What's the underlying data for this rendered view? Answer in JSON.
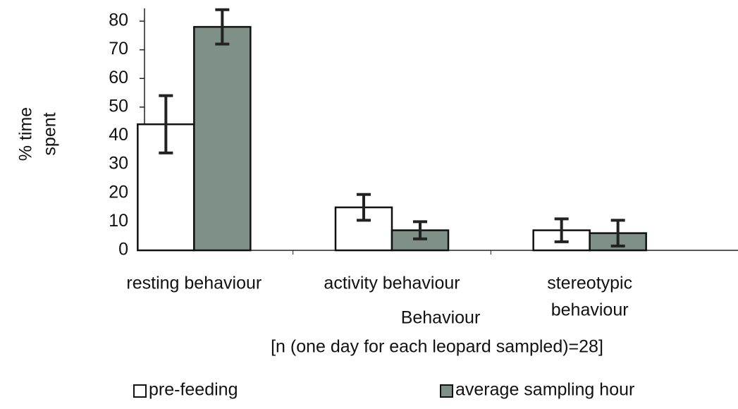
{
  "chart_data": {
    "type": "bar",
    "categories": [
      [
        "resting behaviour"
      ],
      [
        "activity behaviour"
      ],
      [
        "stereotypic",
        "behaviour"
      ]
    ],
    "series": [
      {
        "name": "pre-feeding",
        "color": "#ffffff",
        "values": [
          44,
          15,
          7
        ],
        "errors": [
          10,
          4.5,
          4
        ]
      },
      {
        "name": "average sampling hour",
        "color": "#7f9088",
        "values": [
          78,
          7,
          6
        ],
        "errors": [
          6,
          3,
          4.5
        ]
      }
    ],
    "ylabel": [
      "% time",
      "spent"
    ],
    "xlabel": "Behaviour",
    "note": "[n (one day for each leopard sampled)=28]",
    "ylim": [
      0,
      80
    ],
    "yticks": [
      0,
      10,
      20,
      30,
      40,
      50,
      60,
      70,
      80
    ],
    "legend": "bottom",
    "grid": false
  }
}
